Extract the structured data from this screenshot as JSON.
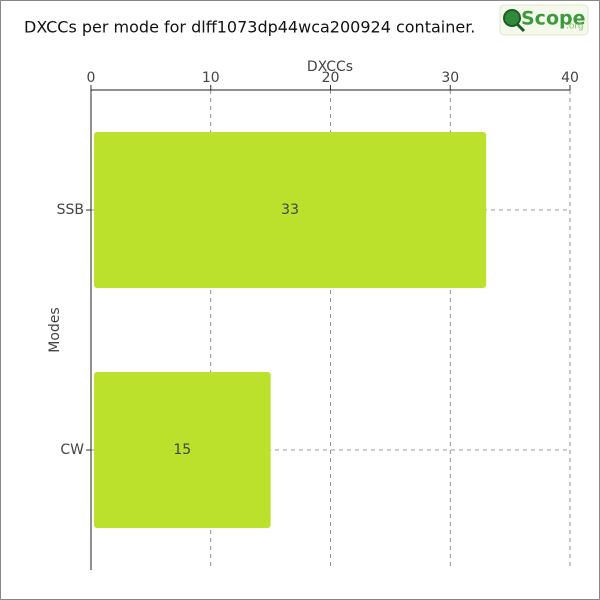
{
  "chart_data": {
    "type": "barh",
    "title": "DXCCs per mode for dlff1073dp44wca200924 container.",
    "logo": {
      "name": "Scope",
      "suffix": ".org"
    },
    "xlabel": "DXCCs",
    "ylabel": "Modes",
    "categories": [
      "SSB",
      "CW"
    ],
    "values": [
      33,
      15
    ],
    "color": "#bce12d",
    "xlim": [
      0,
      40
    ],
    "xticks": [
      0,
      10,
      20,
      30,
      40
    ],
    "grid": true
  }
}
